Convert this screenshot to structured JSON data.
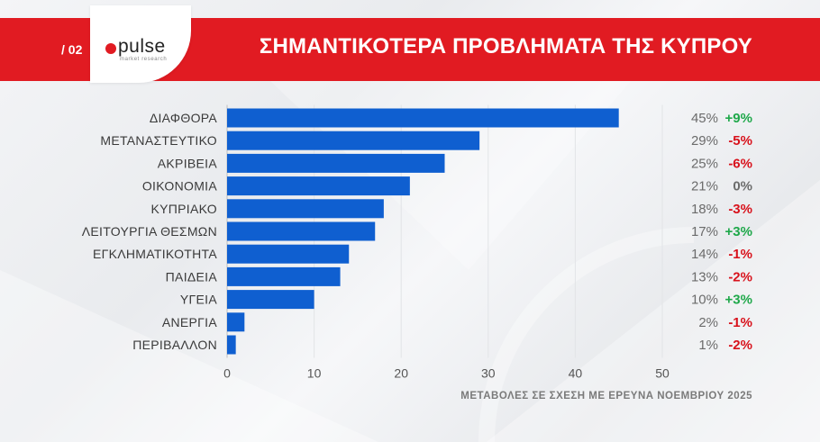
{
  "header": {
    "page_number": "/ 02",
    "brand": "pulse",
    "brand_tagline": "market research",
    "title": "ΣΗΜΑΝΤΙΚΟΤΕΡΑ ΠΡΟΒΛΗΜΑΤΑ ΤΗΣ ΚΥΠΡΟΥ"
  },
  "footnote": "ΜΕΤΑΒΟΛΕΣ ΣΕ ΣΧΕΣΗ ΜΕ ΕΡΕΥΝΑ ΝΟΕΜΒΡΙΟΥ 2025",
  "colors": {
    "brand_red": "#e11b22",
    "bar_blue": "#0f5fd0",
    "change_positive": "#1fa84a",
    "change_negative": "#d8121c",
    "change_zero": "#6b6b6b",
    "value_text": "#6b6b6b"
  },
  "chart_data": {
    "type": "bar",
    "orientation": "horizontal",
    "title": "ΣΗΜΑΝΤΙΚΟΤΕΡΑ ΠΡΟΒΛΗΜΑΤΑ ΤΗΣ ΚΥΠΡΟΥ",
    "categories": [
      "ΔΙΑΦΘΟΡΑ",
      "ΜΕΤΑΝΑΣΤΕΥΤΙΚΟ",
      "ΑΚΡΙΒΕΙΑ",
      "ΟΙΚΟΝΟΜΙΑ",
      "ΚΥΠΡΙΑΚΟ",
      "ΛΕΙΤΟΥΡΓΙΑ ΘΕΣΜΩΝ",
      "ΕΓΚΛΗΜΑΤΙΚΟΤΗΤΑ",
      "ΠΑΙΔΕΙΑ",
      "ΥΓΕΙΑ",
      "ΑΝΕΡΓΙΑ",
      "ΠΕΡΙΒΑΛΛΟΝ"
    ],
    "values": [
      45,
      29,
      25,
      21,
      18,
      17,
      14,
      13,
      10,
      2,
      1
    ],
    "value_labels": [
      "45%",
      "29%",
      "25%",
      "21%",
      "18%",
      "17%",
      "14%",
      "13%",
      "10%",
      "2%",
      "1%"
    ],
    "changes": [
      "+9%",
      "-5%",
      "-6%",
      "0%",
      "-3%",
      "+3%",
      "-1%",
      "-2%",
      "+3%",
      "-1%",
      "-2%"
    ],
    "xlim": [
      0,
      50
    ],
    "xticks": [
      0,
      10,
      20,
      30,
      40,
      50
    ],
    "xlabel": "",
    "ylabel": "",
    "grid": true
  }
}
